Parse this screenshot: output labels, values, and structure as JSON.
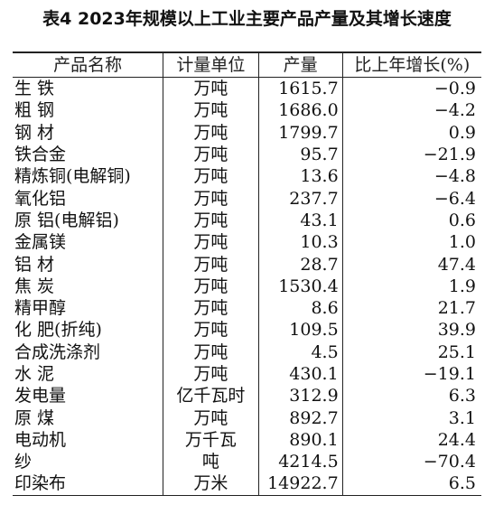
{
  "title": "表4  2023年规模以上工业主要产品产量及其增长速度",
  "headers": [
    "产品名称",
    "计量单位",
    "产量",
    "比上年增长(%)"
  ],
  "rows": [
    {
      "name": "生  铁",
      "unit": "万吨",
      "output": "1615.7",
      "growth": "−0.9"
    },
    {
      "name": "粗  钢",
      "unit": "万吨",
      "output": "1686.0",
      "growth": "−4.2"
    },
    {
      "name": "钢  材",
      "unit": "万吨",
      "output": "1799.7",
      "growth": "0.9"
    },
    {
      "name": "铁合金",
      "unit": "万吨",
      "output": "95.7",
      "growth": "−21.9"
    },
    {
      "name": "精炼铜(电解铜)",
      "unit": "万吨",
      "output": "13.6",
      "growth": "−4.8"
    },
    {
      "name": "氧化铝",
      "unit": "万吨",
      "output": "237.7",
      "growth": "−6.4"
    },
    {
      "name": "原  铝(电解铝)",
      "unit": "万吨",
      "output": "43.1",
      "growth": "0.6"
    },
    {
      "name": "金属镁",
      "unit": "万吨",
      "output": "10.3",
      "growth": "1.0"
    },
    {
      "name": "铝  材",
      "unit": "万吨",
      "output": "28.7",
      "growth": "47.4"
    },
    {
      "name": "焦  炭",
      "unit": "万吨",
      "output": "1530.4",
      "growth": "1.9"
    },
    {
      "name": "精甲醇",
      "unit": "万吨",
      "output": "8.6",
      "growth": "21.7"
    },
    {
      "name": "化  肥(折纯)",
      "unit": "万吨",
      "output": "109.5",
      "growth": "39.9"
    },
    {
      "name": "合成洗涤剂",
      "unit": "万吨",
      "output": "4.5",
      "growth": "25.1"
    },
    {
      "name": "水  泥",
      "unit": "万吨",
      "output": "430.1",
      "growth": "−19.1"
    },
    {
      "name": "发电量",
      "unit": "亿千瓦时",
      "output": "312.9",
      "growth": "6.3"
    },
    {
      "name": "原  煤",
      "unit": "万吨",
      "output": "892.7",
      "growth": "3.1"
    },
    {
      "name": "电动机",
      "unit": "万千瓦",
      "output": "890.1",
      "growth": "24.4"
    },
    {
      "name": "纱",
      "unit": "吨",
      "output": "4214.5",
      "growth": "−70.4"
    },
    {
      "name": "印染布",
      "unit": "万米",
      "output": "14922.7",
      "growth": "6.5"
    }
  ]
}
